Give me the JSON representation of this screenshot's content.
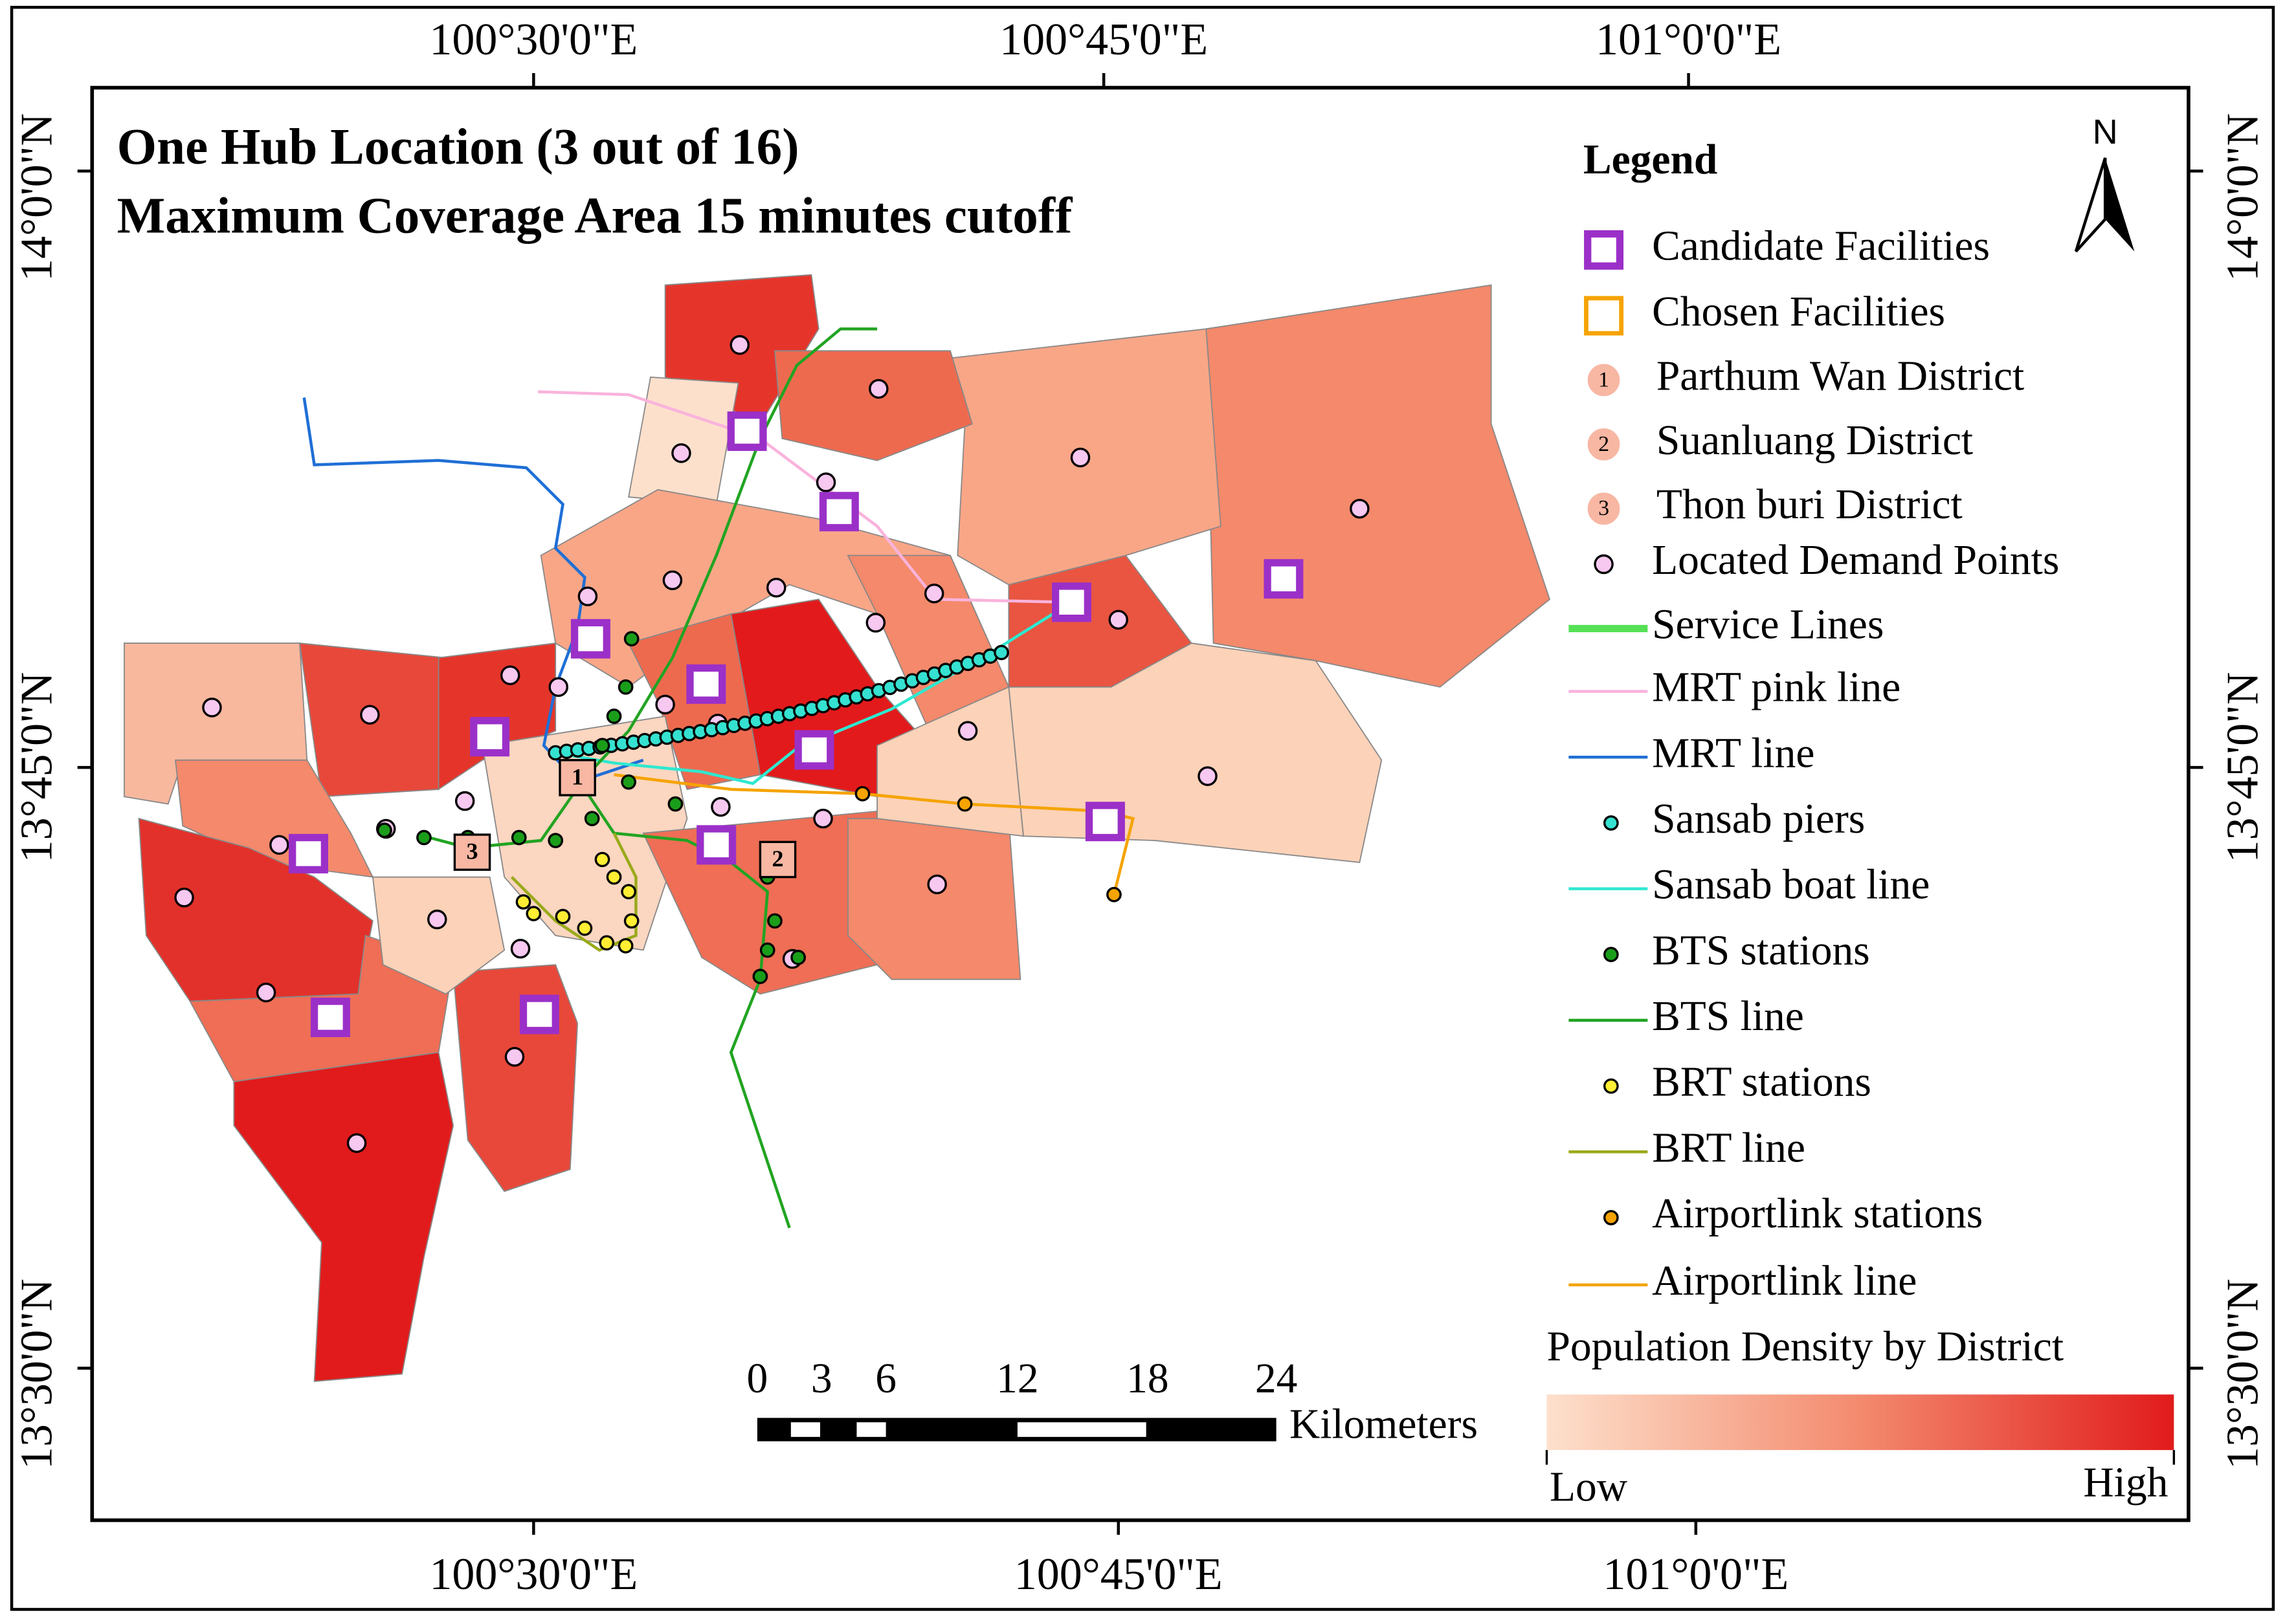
{
  "title": [
    "One Hub Location (3 out of 16)",
    "Maximum Coverage Area 15 minutes cutoff"
  ],
  "graticule": {
    "top": [
      "100°30'0\"E",
      "100°45'0\"E",
      "101°0'0\"E"
    ],
    "bottom": [
      "100°30'0\"E",
      "100°45'0\"E",
      "101°0'0\"E"
    ],
    "left": [
      "14°0'0\"N",
      "13°45'0\"N",
      "13°30'0\"N"
    ],
    "right": [
      "14°0'0\"N",
      "13°45'0\"N",
      "13°30'0\"N"
    ]
  },
  "north_arrow": "N",
  "map_labels": [
    "1",
    "2",
    "3"
  ],
  "legend": {
    "title": "Legend",
    "items": [
      "Candidate Facilities",
      "Chosen Facilities",
      "Parthum Wan District",
      "Suanluang District",
      "Thon buri District",
      "Located Demand Points",
      "Service Lines",
      "MRT pink line",
      "MRT line",
      "Sansab piers",
      "Sansab boat line",
      "BTS stations",
      "BTS line",
      "BRT stations",
      "BRT line",
      "Airportlink stations",
      "Airportlink line"
    ]
  },
  "scale_bar": {
    "labels": [
      "0",
      "3",
      "6",
      "12",
      "18",
      "24"
    ],
    "unit": "Kilometers"
  },
  "density_legend": {
    "title": "Population Density by District",
    "low": "Low",
    "high": "High"
  }
}
